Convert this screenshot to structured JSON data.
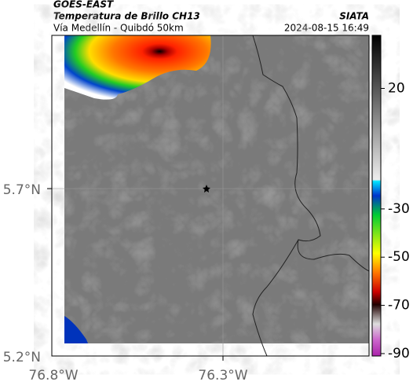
{
  "header": {
    "title": "GOES-EAST",
    "subtitle": "Temperatura de Brillo CH13",
    "route": "Vía Medellín - Quibdó 50km",
    "source": "SIATA",
    "timestamp": "2024-08-15 16:49"
  },
  "map_axes": {
    "y_ticks": [
      "5.7°N",
      "5.2°N"
    ],
    "x_ticks": [
      "76.8°W",
      "76.3°W"
    ]
  },
  "colorbar": {
    "range": [
      -91,
      42
    ],
    "ticks": [
      20,
      -30,
      -50,
      -70,
      -90
    ]
  }
}
